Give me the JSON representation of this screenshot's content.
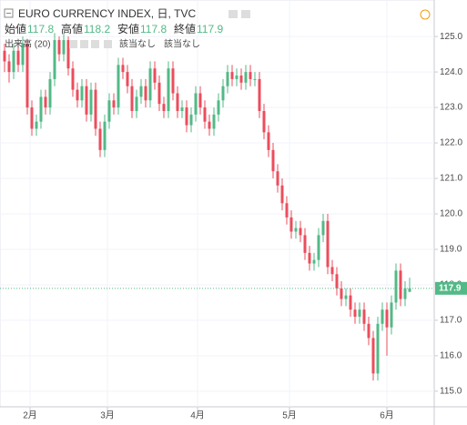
{
  "chart_data": {
    "type": "candlestick",
    "title": "EURO CURRENCY INDEX, 日, TVC",
    "ohlc_labels": [
      "始値",
      "高値",
      "安値",
      "終値"
    ],
    "volume_label": "出来高 (20)",
    "na_labels": [
      "該当なし",
      "該当なし"
    ],
    "up_color": "#53b987",
    "down_color": "#eb4d5c",
    "open": [
      124.6,
      124.3,
      124.0,
      124.6,
      124.2,
      124.8,
      123.0,
      122.4,
      122.6,
      123.3,
      123.0,
      123.8,
      124.9,
      124.5,
      124.9,
      124.1,
      123.5,
      123.2,
      123.6,
      122.8,
      123.5,
      122.4,
      121.8,
      122.6,
      123.2,
      123.0,
      124.2,
      124.0,
      123.6,
      122.9,
      123.3,
      123.6,
      123.2,
      124.1,
      123.7,
      123.1,
      122.9,
      124.1,
      123.4,
      122.9,
      123.0,
      122.5,
      122.8,
      123.4,
      123.0,
      122.6,
      122.4,
      122.8,
      123.2,
      123.6,
      124.0,
      123.8,
      123.9,
      123.7,
      124.0,
      123.8,
      123.8,
      122.9,
      122.3,
      121.8,
      121.2,
      120.8,
      120.3,
      119.9,
      119.5,
      119.6,
      119.4,
      118.9,
      118.6,
      118.7,
      119.4,
      119.8,
      118.5,
      118.3,
      117.9,
      117.6,
      117.7,
      117.3,
      117.1,
      117.3,
      116.9,
      116.5,
      115.5,
      116.9,
      117.3,
      116.8,
      117.5,
      118.4,
      117.6,
      117.8
    ],
    "high": [
      124.8,
      124.5,
      124.8,
      124.8,
      125.0,
      124.9,
      123.2,
      122.8,
      123.5,
      123.5,
      124.0,
      125.1,
      125.0,
      125.1,
      125.0,
      124.3,
      123.7,
      123.8,
      123.8,
      123.7,
      123.7,
      122.6,
      122.8,
      123.4,
      123.4,
      124.4,
      124.4,
      124.2,
      123.8,
      123.5,
      123.8,
      123.8,
      124.3,
      124.3,
      123.9,
      123.3,
      124.3,
      124.3,
      123.6,
      123.2,
      123.2,
      123.0,
      123.6,
      123.6,
      123.2,
      122.8,
      123.0,
      123.4,
      123.8,
      124.2,
      124.2,
      124.1,
      124.1,
      124.2,
      124.2,
      124.0,
      124.0,
      123.1,
      122.5,
      122.0,
      121.4,
      121.0,
      120.5,
      120.1,
      119.8,
      119.8,
      119.6,
      119.1,
      118.9,
      119.6,
      120.0,
      120.0,
      118.7,
      118.5,
      118.1,
      117.9,
      117.9,
      117.5,
      117.5,
      117.5,
      117.1,
      116.7,
      117.1,
      117.5,
      117.5,
      117.7,
      118.6,
      118.6,
      118.1,
      118.2
    ],
    "low": [
      124.0,
      123.7,
      123.8,
      124.0,
      124.0,
      122.8,
      122.2,
      122.2,
      122.4,
      122.8,
      122.8,
      123.6,
      124.3,
      124.3,
      123.9,
      123.3,
      123.0,
      123.0,
      122.6,
      122.6,
      122.2,
      121.6,
      121.6,
      122.4,
      122.8,
      122.8,
      123.8,
      123.4,
      122.7,
      122.7,
      123.1,
      123.0,
      123.0,
      123.5,
      122.9,
      122.7,
      122.7,
      123.2,
      122.7,
      122.7,
      122.3,
      122.3,
      122.6,
      122.8,
      122.4,
      122.2,
      122.2,
      122.6,
      123.0,
      123.4,
      123.6,
      123.6,
      123.5,
      123.5,
      123.6,
      123.6,
      122.7,
      122.1,
      121.6,
      121.0,
      120.6,
      120.1,
      119.7,
      119.3,
      119.3,
      119.2,
      118.7,
      118.4,
      118.4,
      118.5,
      119.2,
      118.3,
      118.1,
      117.7,
      117.4,
      117.4,
      117.1,
      116.9,
      116.9,
      116.7,
      116.3,
      115.3,
      115.3,
      116.7,
      116.0,
      116.6,
      117.3,
      117.4,
      117.4,
      117.8
    ],
    "close": [
      124.3,
      124.0,
      124.6,
      124.2,
      124.8,
      123.0,
      122.4,
      122.6,
      123.3,
      123.0,
      123.8,
      124.9,
      124.5,
      124.9,
      124.1,
      123.5,
      123.2,
      123.6,
      122.8,
      123.5,
      122.4,
      121.8,
      122.6,
      123.2,
      123.0,
      124.2,
      124.0,
      123.6,
      122.9,
      123.3,
      123.6,
      123.2,
      124.1,
      123.7,
      123.1,
      122.9,
      124.1,
      123.4,
      122.9,
      123.0,
      122.5,
      122.8,
      123.4,
      123.0,
      122.6,
      122.4,
      122.8,
      123.2,
      123.6,
      124.0,
      123.8,
      123.9,
      123.7,
      124.0,
      123.8,
      123.8,
      122.9,
      122.3,
      121.8,
      121.2,
      120.8,
      120.3,
      119.9,
      119.5,
      119.6,
      119.4,
      118.9,
      118.6,
      118.7,
      119.4,
      119.8,
      118.5,
      118.3,
      117.9,
      117.6,
      117.7,
      117.3,
      117.1,
      117.3,
      116.9,
      116.5,
      115.5,
      116.9,
      117.3,
      116.8,
      117.5,
      118.4,
      117.6,
      117.9,
      117.9
    ],
    "xlim": [
      -1,
      94.4
    ],
    "xticks": [
      {
        "value": 5.6,
        "label": "2月"
      },
      {
        "value": 22.6,
        "label": "3月"
      },
      {
        "value": 42.4,
        "label": "4月"
      },
      {
        "value": 62.6,
        "label": "5月"
      },
      {
        "value": 84,
        "label": "6月"
      }
    ],
    "ylim": [
      114.56,
      126.03
    ],
    "yticks": [
      {
        "value": 115,
        "label": "115.0"
      },
      {
        "value": 116,
        "label": "116.0"
      },
      {
        "value": 117,
        "label": "117.0"
      },
      {
        "value": 118,
        "label": "118.0"
      },
      {
        "value": 119,
        "label": "119.0"
      },
      {
        "value": 120,
        "label": "120.0"
      },
      {
        "value": 121,
        "label": "121.0"
      },
      {
        "value": 122,
        "label": "122.0"
      },
      {
        "value": 123,
        "label": "123.0"
      },
      {
        "value": 124,
        "label": "124.0"
      },
      {
        "value": 125,
        "label": "125.0"
      }
    ],
    "grid": true
  }
}
